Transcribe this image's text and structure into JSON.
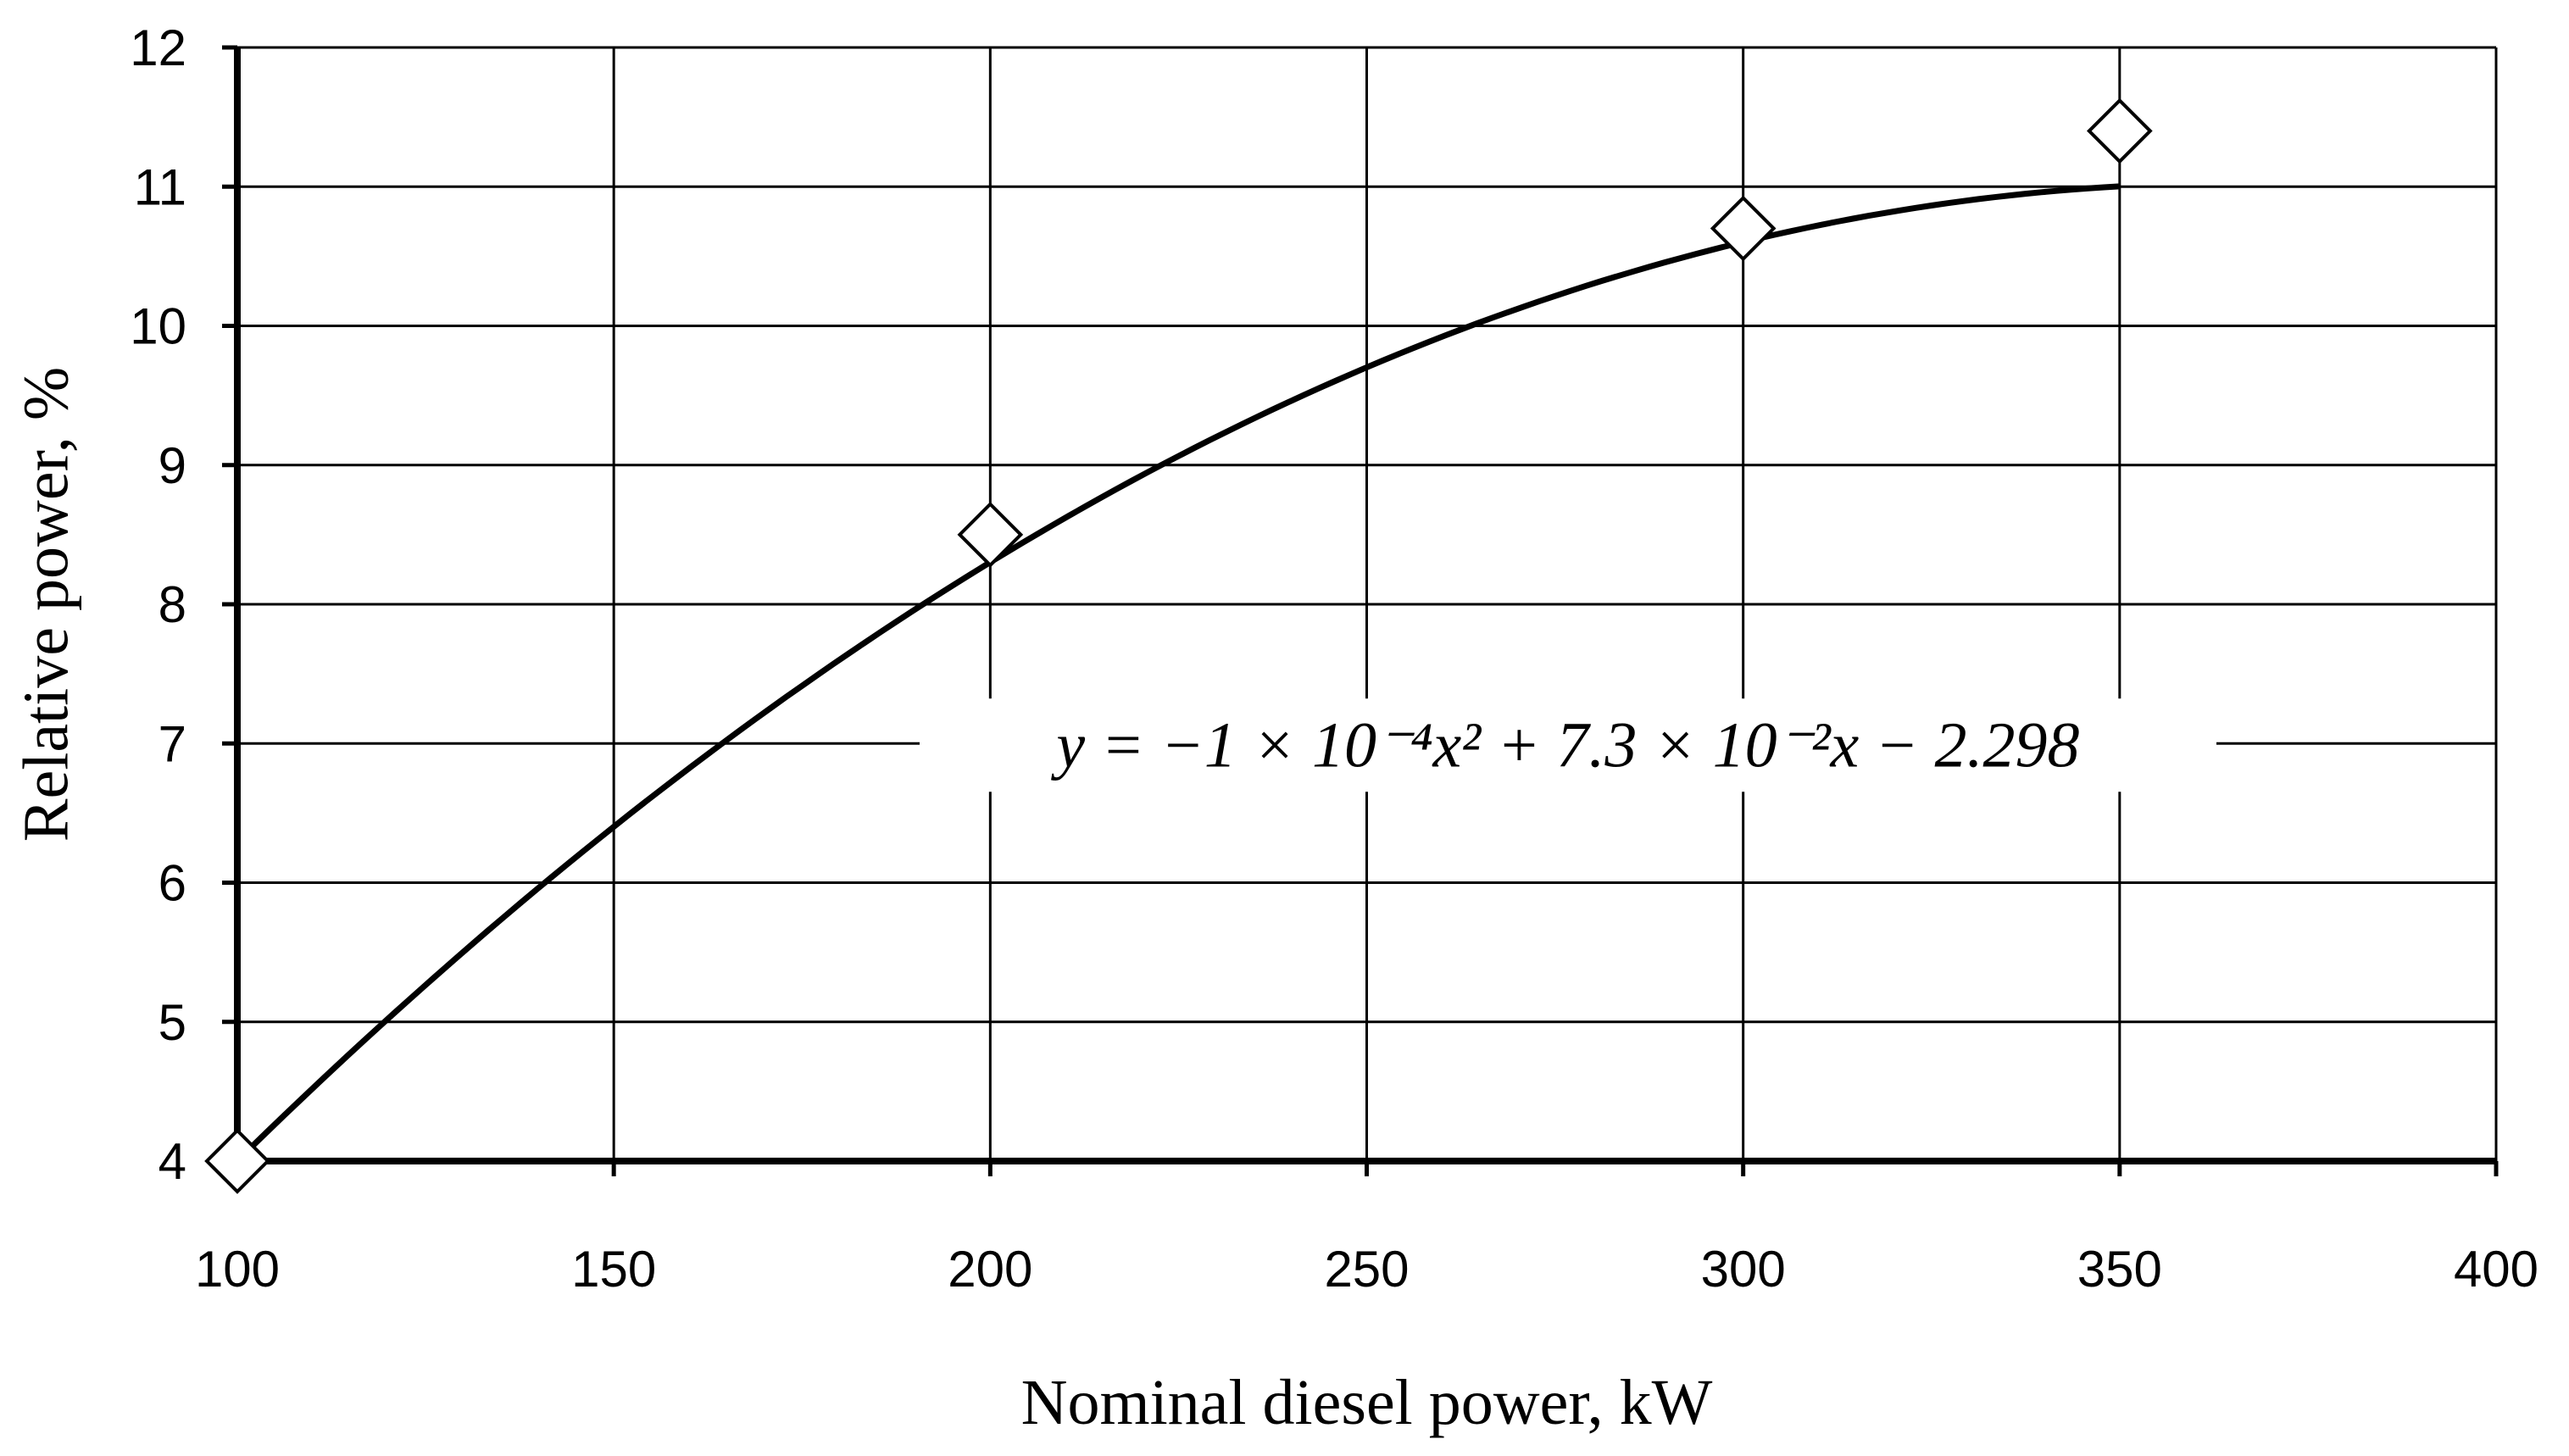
{
  "chart_data": {
    "type": "scatter",
    "xlabel": "Nominal diesel power, kW",
    "ylabel": "Relative power, %",
    "xlim": [
      100,
      400
    ],
    "ylim": [
      4,
      12
    ],
    "x_ticks": [
      100,
      150,
      200,
      250,
      300,
      350,
      400
    ],
    "y_ticks": [
      4,
      5,
      6,
      7,
      8,
      9,
      10,
      11,
      12
    ],
    "grid": true,
    "legend": "none",
    "series": [
      {
        "marker": "open-diamond",
        "points": [
          {
            "x": 100,
            "y": 4.0
          },
          {
            "x": 200,
            "y": 8.5
          },
          {
            "x": 300,
            "y": 10.7
          },
          {
            "x": 350,
            "y": 11.4
          }
        ]
      }
    ],
    "trendline": {
      "type": "polynomial-2",
      "coefficients": {
        "a": -0.0001,
        "b": 0.073,
        "c": -2.298
      },
      "x_range": [
        100,
        350
      ],
      "equation_text": "y = −1 × 10⁻⁴x² + 7.3 × 10⁻²x − 2.298"
    },
    "colors": {
      "line": "#000000",
      "grid": "#000000",
      "background": "#ffffff"
    }
  }
}
